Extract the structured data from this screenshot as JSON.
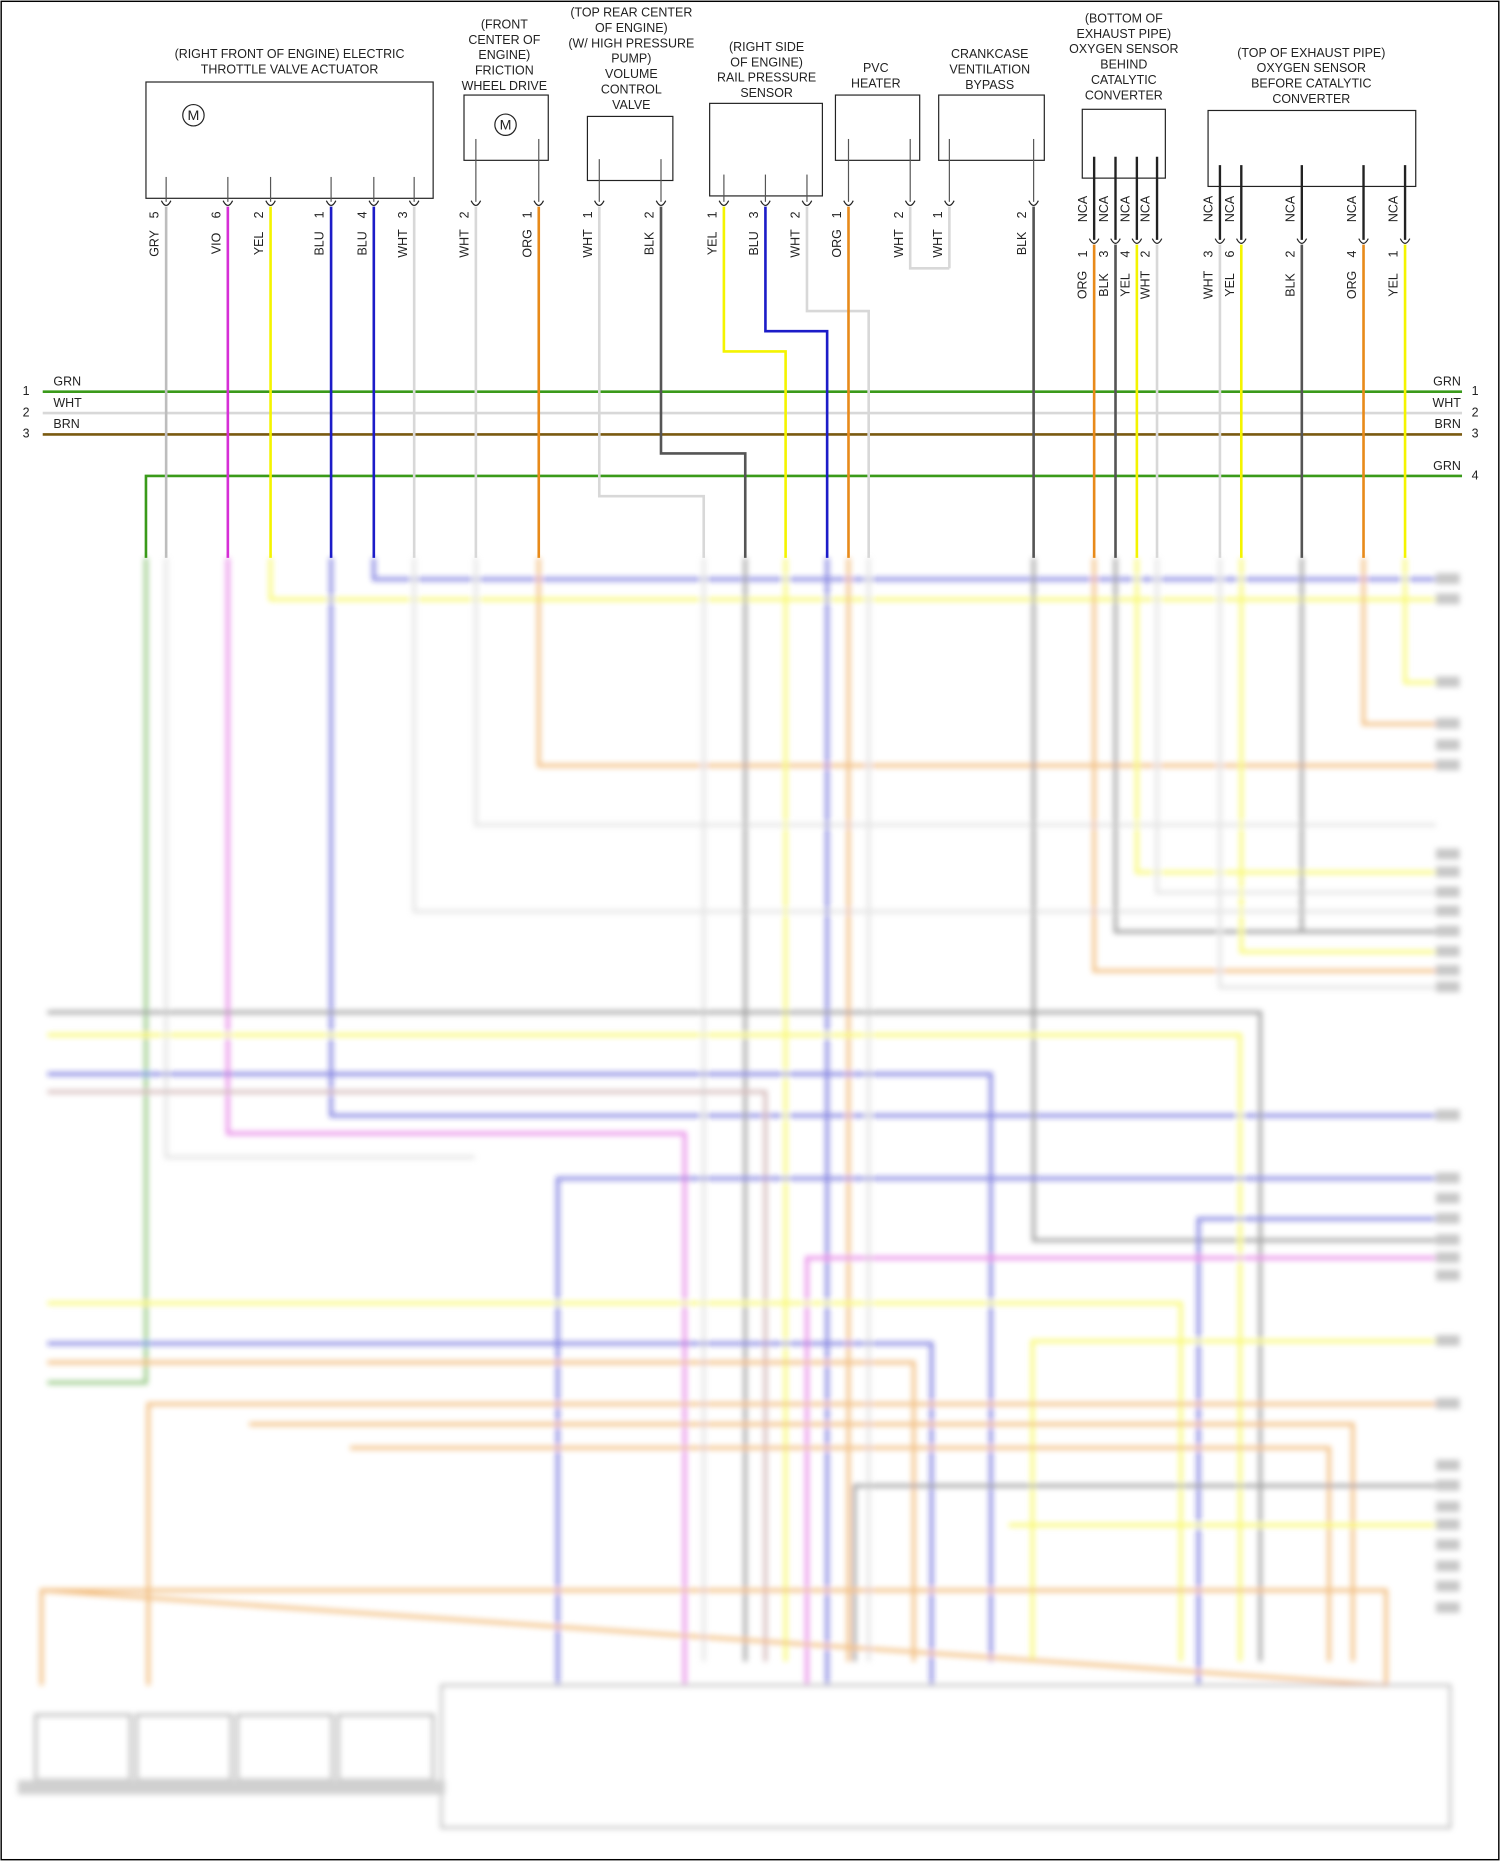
{
  "components": [
    {
      "label": [
        "(RIGHT FRONT OF ENGINE) ELECTRIC",
        "THROTTLE VALVE ACTUATOR"
      ],
      "symbol": "M",
      "pins": [
        {
          "number": "5",
          "wire": "GRY",
          "color": "#bdbdbd"
        },
        {
          "number": "6",
          "wire": "VIO",
          "color": "#d62fd6"
        },
        {
          "number": "2",
          "wire": "YEL",
          "color": "#f4f400"
        },
        {
          "number": "1",
          "wire": "BLU",
          "color": "#1c1cc8"
        },
        {
          "number": "4",
          "wire": "BLU",
          "color": "#1c1cc8"
        },
        {
          "number": "3",
          "wire": "WHT",
          "color": "#d8d8d8"
        }
      ]
    },
    {
      "label": [
        "(FRONT",
        "CENTER OF",
        "ENGINE)",
        "FRICTION",
        "WHEEL DRIVE"
      ],
      "symbol": "M",
      "pins": [
        {
          "number": "2",
          "wire": "WHT",
          "color": "#d8d8d8"
        },
        {
          "number": "1",
          "wire": "ORG",
          "color": "#e88a1a"
        }
      ]
    },
    {
      "label": [
        "(TOP REAR CENTER",
        "OF ENGINE)",
        "(W/ HIGH PRESSURE",
        "PUMP)",
        "VOLUME",
        "CONTROL",
        "VALVE"
      ],
      "pins": [
        {
          "number": "1",
          "wire": "WHT",
          "color": "#d8d8d8"
        },
        {
          "number": "2",
          "wire": "BLK",
          "color": "#555555"
        }
      ]
    },
    {
      "label": [
        "(RIGHT SIDE",
        "OF ENGINE)",
        "RAIL PRESSURE",
        "SENSOR"
      ],
      "pins": [
        {
          "number": "1",
          "wire": "YEL",
          "color": "#f4f400"
        },
        {
          "number": "3",
          "wire": "BLU",
          "color": "#1c1cc8"
        },
        {
          "number": "2",
          "wire": "WHT",
          "color": "#d8d8d8"
        }
      ]
    },
    {
      "label": [
        "PVC",
        "HEATER"
      ],
      "pins": [
        {
          "number": "1",
          "wire": "ORG",
          "color": "#e88a1a"
        },
        {
          "number": "2",
          "wire": "WHT",
          "color": "#d8d8d8"
        }
      ]
    },
    {
      "label": [
        "CRANKCASE",
        "VENTILATION",
        "BYPASS"
      ],
      "pins": [
        {
          "number": "1",
          "wire": "WHT",
          "color": "#d8d8d8"
        },
        {
          "number": "2",
          "wire": "BLK",
          "color": "#555555"
        }
      ]
    },
    {
      "label": [
        "(BOTTOM OF",
        "EXHAUST PIPE)",
        "OXYGEN SENSOR",
        "BEHIND",
        "CATALYTIC",
        "CONVERTER"
      ],
      "pins": [
        {
          "code": "NCA",
          "number": "1",
          "wire": "ORG",
          "color": "#e88a1a"
        },
        {
          "code": "NCA",
          "number": "3",
          "wire": "BLK",
          "color": "#555555"
        },
        {
          "code": "NCA",
          "number": "4",
          "wire": "YEL",
          "color": "#f4f400"
        },
        {
          "code": "NCA",
          "number": "2",
          "wire": "WHT",
          "color": "#d8d8d8"
        }
      ]
    },
    {
      "label": [
        "(TOP OF EXHAUST PIPE)",
        "OXYGEN SENSOR",
        "BEFORE CATALYTIC",
        "CONVERTER"
      ],
      "pins": [
        {
          "code": "NCA",
          "number": "3",
          "wire": "WHT",
          "color": "#d8d8d8"
        },
        {
          "code": "NCA",
          "number": "6",
          "wire": "YEL",
          "color": "#f4f400"
        },
        {
          "code": "NCA",
          "number": "2",
          "wire": "BLK",
          "color": "#555555"
        },
        {
          "code": "NCA",
          "number": "4",
          "wire": "ORG",
          "color": "#e88a1a"
        },
        {
          "code": "NCA",
          "number": "1",
          "wire": "YEL",
          "color": "#f4f400"
        }
      ]
    }
  ],
  "bus": [
    {
      "number": "1",
      "name": "GRN",
      "color": "#3a9a1a",
      "both_sides": true
    },
    {
      "number": "2",
      "name": "WHT",
      "color": "#d8d8d8",
      "both_sides": true
    },
    {
      "number": "3",
      "name": "BRN",
      "color": "#7a5a10",
      "both_sides": true
    },
    {
      "number": "4",
      "name": "GRN",
      "color": "#3a9a1a",
      "both_sides": false
    }
  ]
}
